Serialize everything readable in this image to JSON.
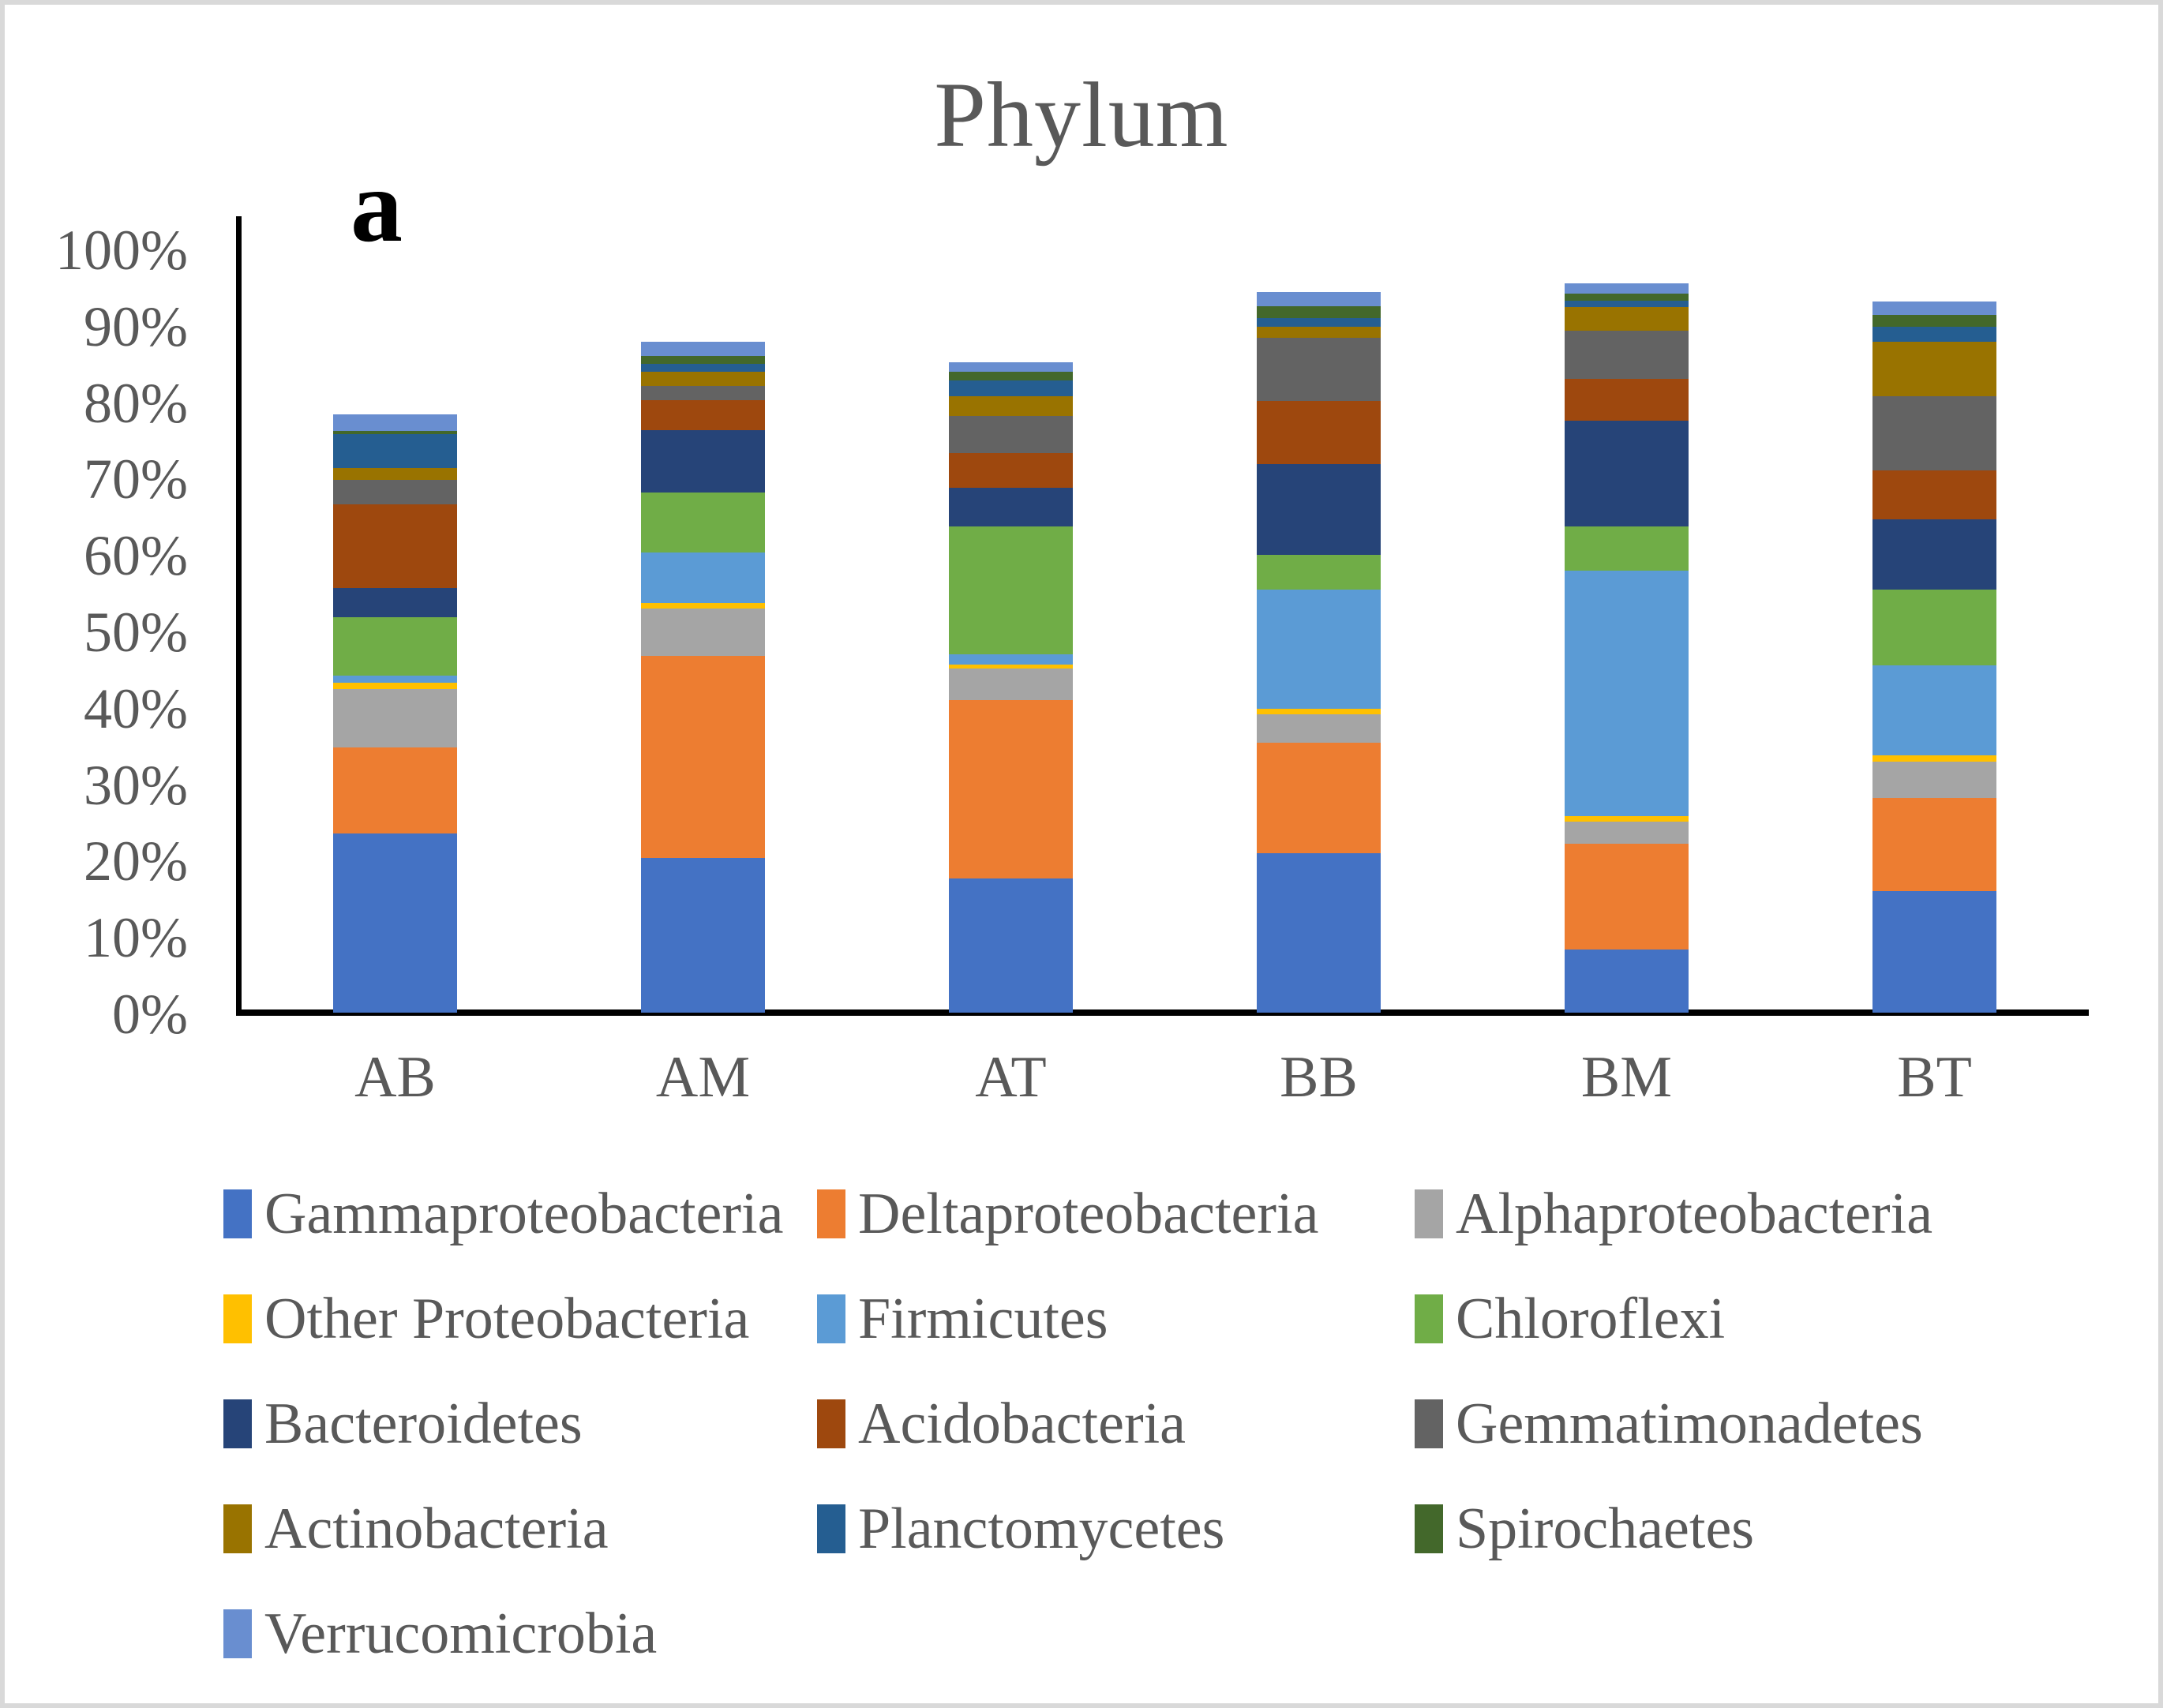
{
  "figure": {
    "title": "Phylum",
    "panel_label": "a"
  },
  "chart_data": {
    "type": "bar",
    "subtype": "stacked-percentage",
    "title": "Phylum",
    "xlabel": "",
    "ylabel": "",
    "ylim": [
      0,
      100
    ],
    "y_tick_labels": [
      "100%",
      "90%",
      "80%",
      "70%",
      "60%",
      "50%",
      "40%",
      "30%",
      "20%",
      "10%",
      "0%"
    ],
    "grid": false,
    "legend_position": "bottom",
    "categories": [
      "AB",
      "AM",
      "AT",
      "BB",
      "BM",
      "BT"
    ],
    "series": [
      {
        "name": "Gammaproteobacteria",
        "color": "#4472C4",
        "values": [
          23.4,
          20.2,
          17.6,
          20.9,
          8.3,
          15.9
        ]
      },
      {
        "name": "Deltaproteobacteria",
        "color": "#ED7D31",
        "values": [
          11.3,
          26.5,
          23.3,
          14.4,
          13.8,
          12.2
        ]
      },
      {
        "name": "Alphaproteobacteria",
        "color": "#A5A5A5",
        "values": [
          7.7,
          6.2,
          4.1,
          3.7,
          2.9,
          4.8
        ]
      },
      {
        "name": "Other Proteobacteria",
        "color": "#FFC000",
        "values": [
          0.8,
          0.7,
          0.6,
          0.8,
          0.7,
          0.8
        ]
      },
      {
        "name": "Firmicutes",
        "color": "#5B9BD5",
        "values": [
          0.9,
          6.6,
          1.3,
          15.6,
          32.2,
          11.8
        ]
      },
      {
        "name": "Chloroflexi",
        "color": "#70AD47",
        "values": [
          7.7,
          7.9,
          16.7,
          4.5,
          5.7,
          9.9
        ]
      },
      {
        "name": "Bacteroidetes",
        "color": "#264478",
        "values": [
          3.8,
          8.1,
          5.1,
          11.9,
          13.9,
          9.2
        ]
      },
      {
        "name": "Acidobacteria",
        "color": "#9E480E",
        "values": [
          10.9,
          4.0,
          4.5,
          8.3,
          5.5,
          6.4
        ]
      },
      {
        "name": "Gemmatimonadetes",
        "color": "#636363",
        "values": [
          3.2,
          1.8,
          4.9,
          8.2,
          6.3,
          9.7
        ]
      },
      {
        "name": "Actinobacteria",
        "color": "#997300",
        "values": [
          1.6,
          1.9,
          2.6,
          1.5,
          3.1,
          7.1
        ]
      },
      {
        "name": "Planctomycetes",
        "color": "#255E91",
        "values": [
          4.4,
          1.0,
          2.0,
          1.1,
          0.8,
          2.0
        ]
      },
      {
        "name": "Spirochaetes",
        "color": "#43682B",
        "values": [
          0.4,
          1.1,
          1.2,
          1.6,
          0.9,
          1.5
        ]
      },
      {
        "name": "Verrucomicrobia",
        "color": "#698ED0",
        "values": [
          2.2,
          1.8,
          1.2,
          1.8,
          1.4,
          1.8
        ]
      }
    ],
    "bar_totals_percent": {
      "AB": 78.3,
      "AM": 87.8,
      "AT": 85.1,
      "BB": 94.3,
      "BM": 95.5,
      "BT": 93.1
    }
  }
}
